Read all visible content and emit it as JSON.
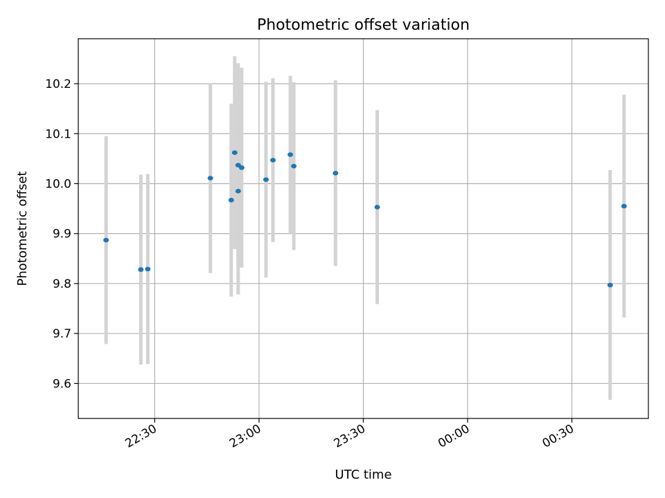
{
  "chart_data": {
    "type": "scatter",
    "title": "Photometric offset variation",
    "xlabel": "UTC time",
    "ylabel": "Photometric offset",
    "x_ticks": [
      "22:30",
      "23:00",
      "23:30",
      "00:00",
      "00:30"
    ],
    "y_ticks": [
      "9.6",
      "9.7",
      "9.8",
      "9.9",
      "10.0",
      "10.1",
      "10.2"
    ],
    "xlim": [
      "22:08",
      "00:52"
    ],
    "ylim": [
      9.53,
      10.29
    ],
    "grid": true,
    "point_color": "#1f77b4",
    "errorbar_color": "#d3d3d3",
    "points": [
      {
        "x": "22:16",
        "y": 9.887,
        "yerr": 0.208
      },
      {
        "x": "22:26",
        "y": 9.828,
        "yerr": 0.19
      },
      {
        "x": "22:28",
        "y": 9.829,
        "yerr": 0.19
      },
      {
        "x": "22:46",
        "y": 10.011,
        "yerr": 0.19
      },
      {
        "x": "22:52",
        "y": 9.967,
        "yerr": 0.193
      },
      {
        "x": "22:53",
        "y": 10.062,
        "yerr": 0.193
      },
      {
        "x": "22:54",
        "y": 10.037,
        "yerr": 0.204
      },
      {
        "x": "22:54",
        "y": 9.985,
        "yerr": 0.207
      },
      {
        "x": "22:55",
        "y": 10.032,
        "yerr": 0.2
      },
      {
        "x": "23:02",
        "y": 10.008,
        "yerr": 0.196
      },
      {
        "x": "23:04",
        "y": 10.047,
        "yerr": 0.164
      },
      {
        "x": "23:09",
        "y": 10.058,
        "yerr": 0.158
      },
      {
        "x": "23:10",
        "y": 10.035,
        "yerr": 0.168
      },
      {
        "x": "23:22",
        "y": 10.021,
        "yerr": 0.186
      },
      {
        "x": "23:34",
        "y": 9.953,
        "yerr": 0.194
      },
      {
        "x": "00:41",
        "y": 9.797,
        "yerr": 0.23
      },
      {
        "x": "00:45",
        "y": 9.955,
        "yerr": 0.223
      }
    ]
  }
}
